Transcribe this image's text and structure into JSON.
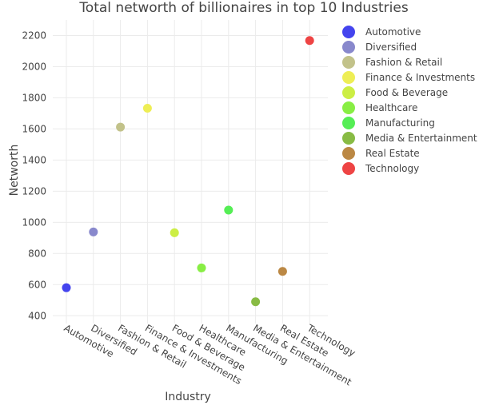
{
  "chart_data": {
    "type": "scatter",
    "title": "Total networth of billionaires in top 10 Industries",
    "xlabel": "Industry",
    "ylabel": "Networth",
    "categories": [
      "Automotive",
      "Diversified",
      "Fashion & Retail",
      "Finance & Investments",
      "Food & Beverage",
      "Healthcare",
      "Manufacturing",
      "Media & Entertainment",
      "Real Estate",
      "Technology"
    ],
    "ylim": [
      350,
      2300
    ],
    "yticks": [
      400,
      600,
      800,
      1000,
      1200,
      1400,
      1600,
      1800,
      2000,
      2200
    ],
    "grid": true,
    "legend_position": "right",
    "series": [
      {
        "name": "Automotive",
        "x": "Automotive",
        "y": 580,
        "color": "#4444ee"
      },
      {
        "name": "Diversified",
        "x": "Diversified",
        "y": 938,
        "color": "#8888cc"
      },
      {
        "name": "Fashion & Retail",
        "x": "Fashion & Retail",
        "y": 1612,
        "color": "#c2c28a"
      },
      {
        "name": "Finance & Investments",
        "x": "Finance & Investments",
        "y": 1733,
        "color": "#eeee55"
      },
      {
        "name": "Food & Beverage",
        "x": "Food & Beverage",
        "y": 933,
        "color": "#ccee44"
      },
      {
        "name": "Healthcare",
        "x": "Healthcare",
        "y": 707,
        "color": "#88ee44"
      },
      {
        "name": "Manufacturing",
        "x": "Manufacturing",
        "y": 1079,
        "color": "#55ee55"
      },
      {
        "name": "Media & Entertainment",
        "x": "Media & Entertainment",
        "y": 490,
        "color": "#88bb44"
      },
      {
        "name": "Real Estate",
        "x": "Real Estate",
        "y": 685,
        "color": "#bb8844"
      },
      {
        "name": "Technology",
        "x": "Technology",
        "y": 2168,
        "color": "#ee4444"
      }
    ]
  }
}
